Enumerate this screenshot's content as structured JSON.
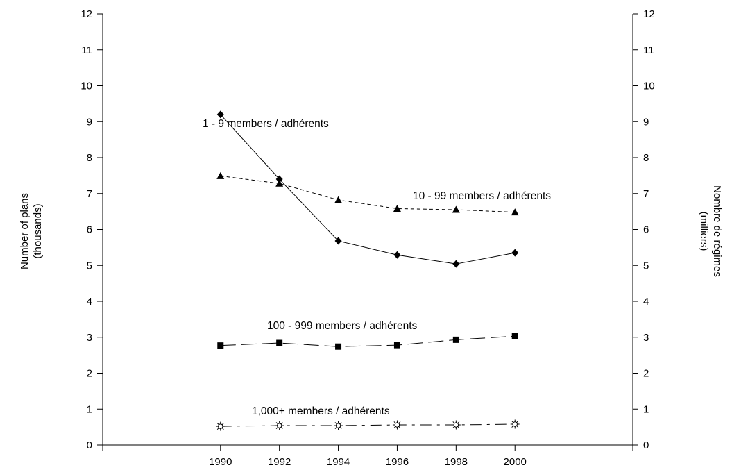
{
  "chart_data": {
    "type": "line",
    "x": [
      1990,
      1992,
      1994,
      1996,
      1998,
      2000
    ],
    "xlim": [
      1986,
      2004
    ],
    "ylim": [
      0,
      12
    ],
    "yticks": [
      0,
      1,
      2,
      3,
      4,
      5,
      6,
      7,
      8,
      9,
      10,
      11,
      12
    ],
    "grid": false,
    "ylabel_left": [
      "Number of plans",
      "(thousands)"
    ],
    "ylabel_right": [
      "Nombre de régimes",
      "(milliers)"
    ],
    "series": [
      {
        "name": "1 - 9 members / adhérents",
        "values": [
          9.2,
          7.4,
          5.68,
          5.29,
          5.04,
          5.35
        ],
        "marker": "diamond",
        "line_style": "solid"
      },
      {
        "name": "10 - 99 members / adhérents",
        "values": [
          7.49,
          7.28,
          6.82,
          6.58,
          6.55,
          6.48
        ],
        "marker": "triangle",
        "line_style": "short-dash"
      },
      {
        "name": "100 - 999 members / adhérents",
        "values": [
          2.77,
          2.84,
          2.74,
          2.78,
          2.93,
          3.03
        ],
        "marker": "square",
        "line_style": "long-dash"
      },
      {
        "name": "1,000+ members / adhérents",
        "values": [
          0.52,
          0.54,
          0.54,
          0.56,
          0.56,
          0.58
        ],
        "marker": "sun",
        "line_style": "dash-dot"
      }
    ]
  }
}
